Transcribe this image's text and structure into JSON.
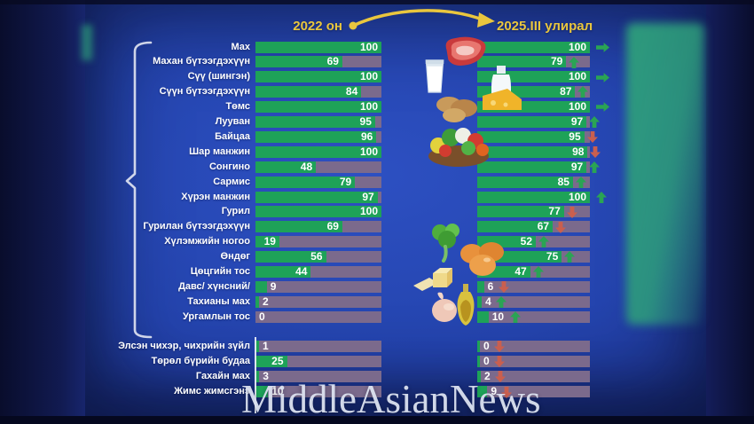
{
  "header": {
    "left_label": "2022 он",
    "right_label": "2025.III улирал"
  },
  "watermark": "MiddleAsianNews",
  "colors": {
    "bar_green": "#1ea258",
    "bar_track": "#7b6a8c",
    "accent_yellow": "#e9c63e",
    "trend_up": "#2aa454",
    "trend_down": "#c95f4f",
    "teal_glow": "#2e9f7b",
    "value_text": "#ffffff"
  },
  "icons": {
    "foods": [
      "meat",
      "milk-glass",
      "dairy-products",
      "potatoes",
      "vegetables",
      "leafy-greens",
      "eggs",
      "butter-cheese",
      "chicken-meat",
      "vegetable-oil"
    ],
    "trend": {
      "up": "up-arrow",
      "down": "down-arrow",
      "same": "right-arrow"
    }
  },
  "chart_data": {
    "type": "bar",
    "orientation": "horizontal",
    "title": "",
    "unit": "%",
    "xlim": [
      0,
      100
    ],
    "categories": [
      "Мах",
      "Махан бүтээгдэхүүн",
      "Сүү (шингэн)",
      "Сүүн бүтээгдэхүүн",
      "Төмс",
      "Лууван",
      "Байцаа",
      "Шар манжин",
      "Сонгино",
      "Сармис",
      "Хүрэн манжин",
      "Гурил",
      "Гурилан бүтээгдэхүүн",
      "Хүлэмжийн ногоо",
      "Өндөг",
      "Цөцгийн тос",
      "Давс/ хүнсний/",
      "Тахианы мах",
      "Ургамлын тос",
      "Элсэн чихэр, чихрийн зүйл",
      "Төрөл бүрийн будаа",
      "Гахайн мах",
      "Жимс жимсгэнэ"
    ],
    "series": [
      {
        "name": "2022 он",
        "values": [
          100,
          69,
          100,
          84,
          100,
          95,
          96,
          100,
          48,
          79,
          97,
          100,
          69,
          19,
          56,
          44,
          9,
          2,
          0,
          1,
          25,
          3,
          10
        ]
      },
      {
        "name": "2025.III улирал",
        "values": [
          100,
          79,
          100,
          87,
          100,
          97,
          95,
          98,
          97,
          85,
          100,
          77,
          67,
          52,
          75,
          47,
          6,
          4,
          10,
          0,
          0,
          2,
          9
        ]
      }
    ],
    "trends": [
      "same",
      "up",
      "same",
      "up",
      "same",
      "up",
      "down",
      "down",
      "up",
      "up",
      "up",
      "down",
      "down",
      "up",
      "up",
      "up",
      "down",
      "up",
      "up",
      "down",
      "down",
      "down",
      "down"
    ],
    "groups": {
      "bottom_start_index": 19
    }
  }
}
